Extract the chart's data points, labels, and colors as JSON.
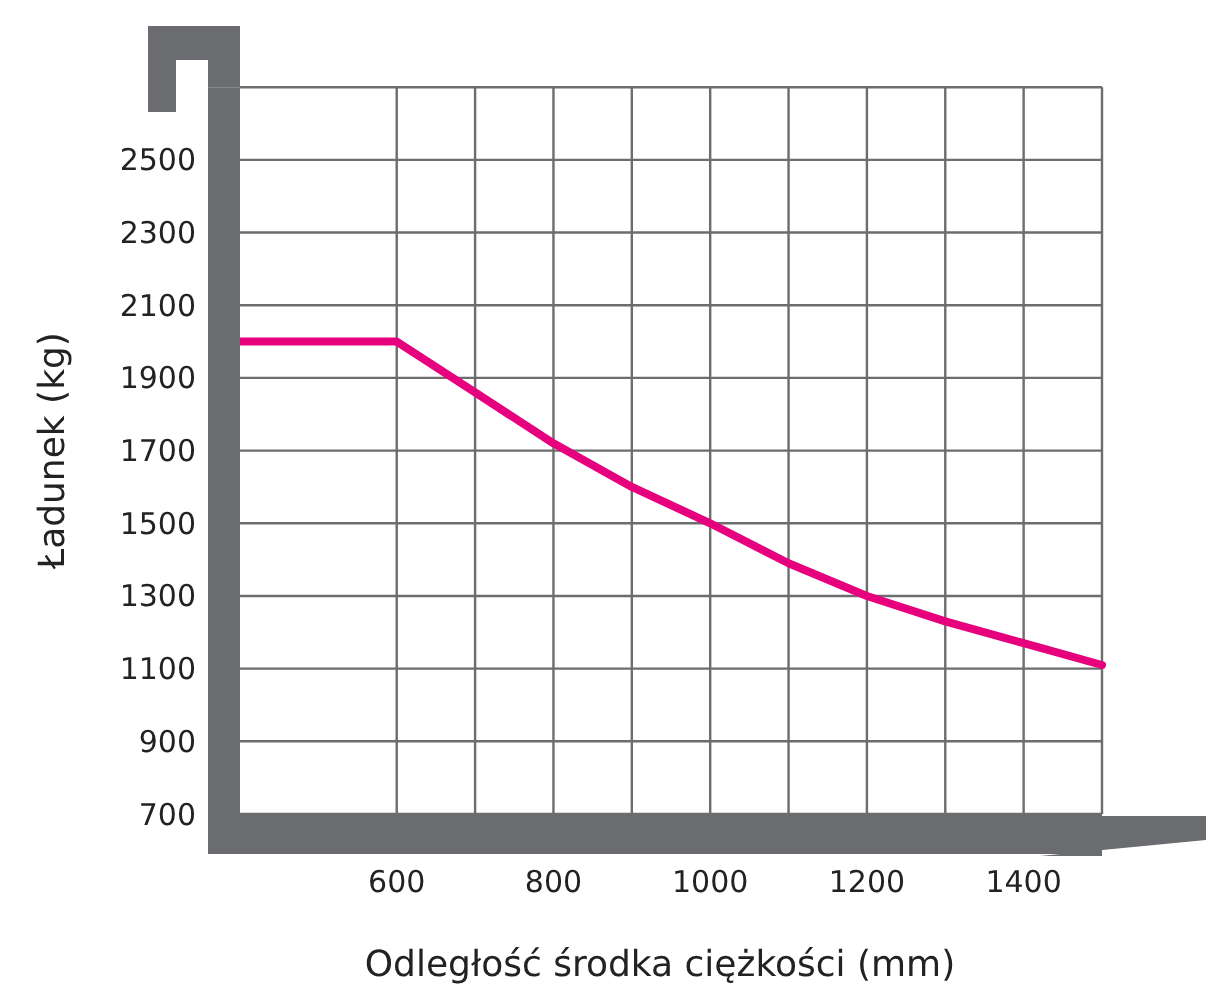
{
  "chart_data": {
    "type": "line",
    "xlabel": "Odległość środka ciężkości (mm)",
    "ylabel": "Ładunek (kg)",
    "x": [
      400,
      600,
      700,
      800,
      900,
      1000,
      1100,
      1200,
      1300,
      1400,
      1500
    ],
    "series": [
      {
        "color": "#e6007e",
        "values": [
          2000,
          2000,
          1860,
          1720,
          1600,
          1500,
          1390,
          1300,
          1230,
          1170,
          1110
        ]
      }
    ],
    "xlim": [
      400,
      1500
    ],
    "xticks": [
      600,
      {
        "value": 700,
        "label": null
      },
      800,
      {
        "value": 900,
        "label": null
      },
      1000,
      {
        "value": 1100,
        "label": null
      },
      1200,
      {
        "value": 1300,
        "label": null
      },
      1400,
      {
        "value": 1500,
        "label": null
      }
    ],
    "ylim": [
      700,
      2700
    ],
    "yticks": [
      700,
      900,
      1100,
      1300,
      1500,
      1700,
      1900,
      2100,
      2300,
      2500,
      {
        "value": 2700,
        "label": null
      }
    ],
    "grid": true,
    "marker": "none",
    "line_style": "solid"
  }
}
